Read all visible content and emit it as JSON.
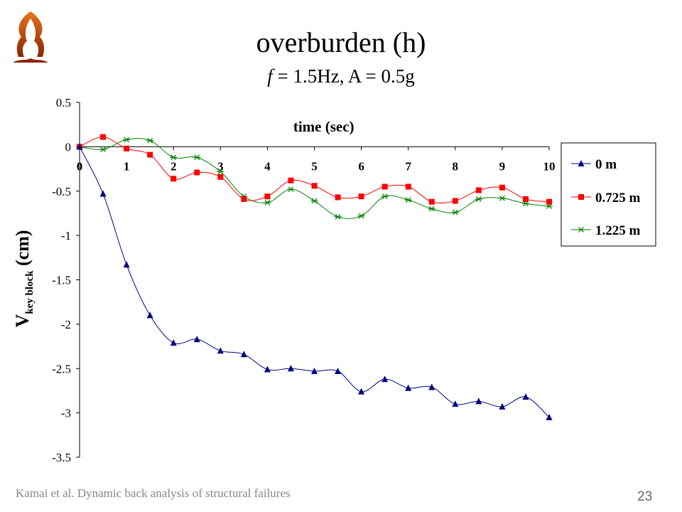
{
  "title": "overburden (h)",
  "subtitle": {
    "f_symbol": "f",
    "rest": " = 1.5Hz, A = 0.5g"
  },
  "footer": "Kamai et al. Dynamic back analysis of structural failures",
  "page_number": "23",
  "logo": {
    "icon": "stylized-flame-logo-icon",
    "colors": [
      "#d2691e",
      "#8b2500"
    ]
  },
  "chart_data": {
    "type": "line",
    "xlabel": "time (sec)",
    "ylabel": {
      "main": "V",
      "subscript": "key block",
      "unit": " (cm)"
    },
    "xlim": [
      0,
      10
    ],
    "ylim": [
      -3.5,
      0.5
    ],
    "x_ticks": [
      "0",
      "1",
      "2",
      "3",
      "4",
      "5",
      "6",
      "7",
      "8",
      "9",
      "10"
    ],
    "y_ticks": [
      "0.5",
      "0",
      "-0.5",
      "-1",
      "-1.5",
      "-2",
      "-2.5",
      "-3",
      "-3.5"
    ],
    "grid": false,
    "legend_position": "right",
    "x": [
      0,
      0.5,
      1,
      1.5,
      2,
      2.5,
      3,
      3.5,
      4,
      4.5,
      5,
      5.5,
      6,
      6.5,
      7,
      7.5,
      8,
      8.5,
      9,
      9.5,
      10
    ],
    "series": [
      {
        "name": "0 m",
        "color": "#000080",
        "marker": "triangle",
        "values": [
          0,
          -0.53,
          -1.33,
          -1.9,
          -2.21,
          -2.17,
          -2.3,
          -2.34,
          -2.51,
          -2.5,
          -2.53,
          -2.53,
          -2.76,
          -2.62,
          -2.72,
          -2.71,
          -2.9,
          -2.87,
          -2.93,
          -2.82,
          -3.05
        ]
      },
      {
        "name": "0.725 m",
        "color": "#ff0000",
        "marker": "square",
        "values": [
          0,
          0.11,
          -0.02,
          -0.09,
          -0.36,
          -0.29,
          -0.34,
          -0.59,
          -0.56,
          -0.38,
          -0.44,
          -0.57,
          -0.56,
          -0.45,
          -0.45,
          -0.62,
          -0.61,
          -0.49,
          -0.46,
          -0.59,
          -0.62
        ]
      },
      {
        "name": "1.225 m",
        "color": "#008000",
        "marker": "asterisk",
        "values": [
          0,
          -0.03,
          0.08,
          0.07,
          -0.12,
          -0.12,
          -0.28,
          -0.56,
          -0.63,
          -0.48,
          -0.61,
          -0.79,
          -0.78,
          -0.56,
          -0.6,
          -0.7,
          -0.74,
          -0.59,
          -0.58,
          -0.64,
          -0.67
        ]
      }
    ]
  }
}
